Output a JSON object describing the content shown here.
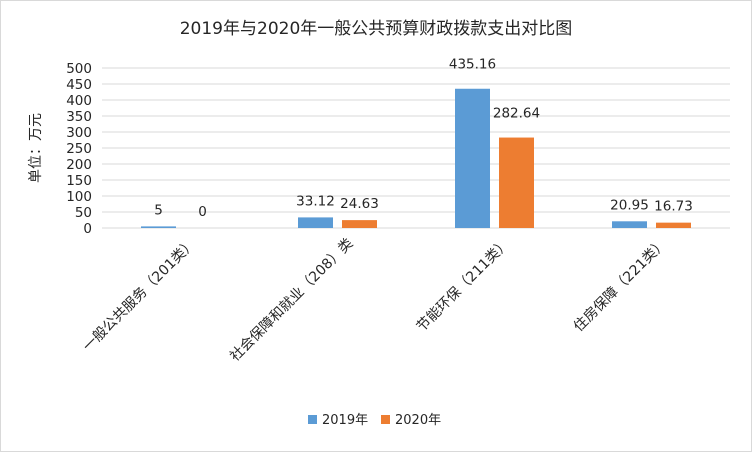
{
  "chart_data": {
    "type": "bar",
    "title": "2019年与2020年一般公共预算财政拨款支出对比图",
    "ylabel": "单位：万元",
    "xlabel": "",
    "ylim": [
      0,
      500
    ],
    "yticks": [
      "0",
      "50",
      "100",
      "150",
      "200",
      "250",
      "300",
      "350",
      "400",
      "450",
      "500"
    ],
    "grid": true,
    "legend_position": "bottom",
    "categories": [
      "一般公共服务（201类）",
      "社会保障和就业（208）类",
      "节能环保（211类）",
      "住房保障（221类）"
    ],
    "series": [
      {
        "name": "2019年",
        "color": "#5b9bd5",
        "values": [
          5,
          33.12,
          435.16,
          20.95
        ],
        "labels": [
          "5",
          "33.12",
          "435.16",
          "20.95"
        ]
      },
      {
        "name": "2020年",
        "color": "#ed7d31",
        "values": [
          0,
          24.63,
          282.64,
          16.73
        ],
        "labels": [
          "0",
          "24.63",
          "282.64",
          "16.73"
        ]
      }
    ]
  }
}
